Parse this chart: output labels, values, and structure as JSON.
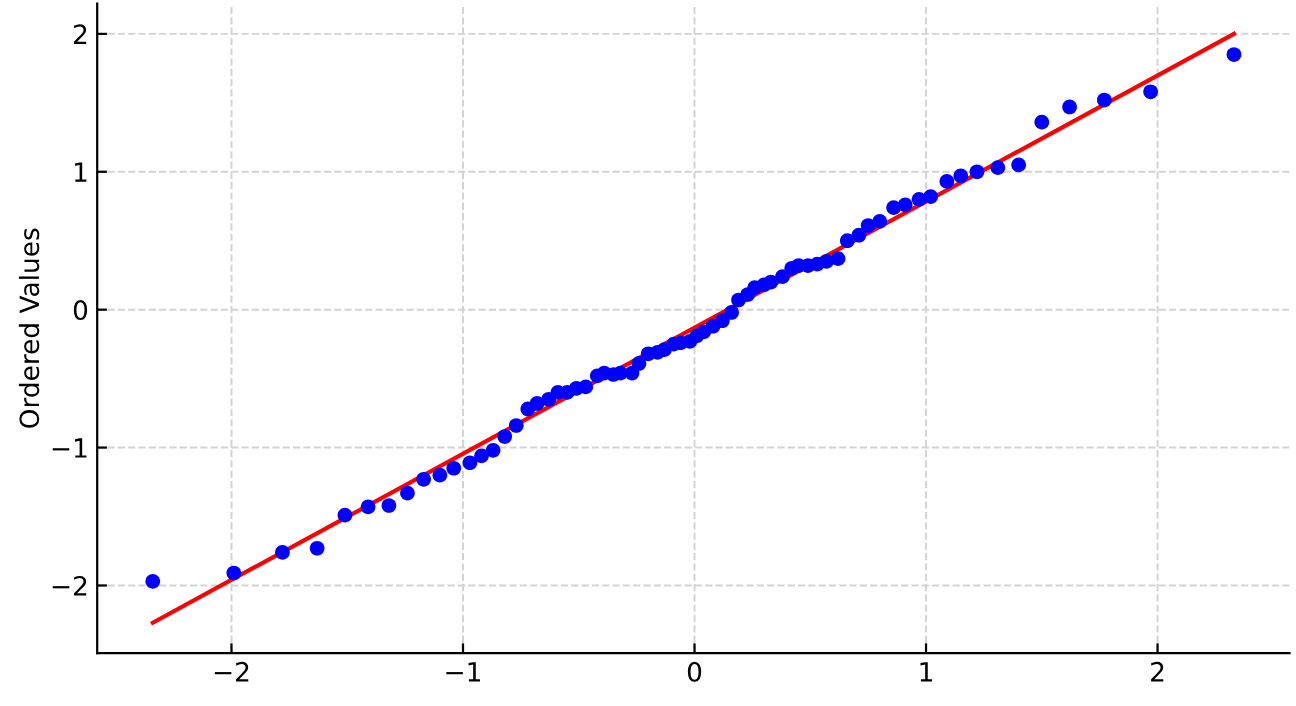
{
  "chart_data": {
    "type": "scatter",
    "ylabel": "Ordered Values",
    "xlim": [
      -2.58,
      2.57
    ],
    "ylim": [
      -2.49,
      2.22
    ],
    "xticks": [
      -2,
      -1,
      0,
      1,
      2
    ],
    "yticks": [
      -2,
      -1,
      0,
      1,
      2
    ],
    "grid": true,
    "marker": "circle",
    "series": [
      {
        "color": "#0000ff",
        "x": [
          -2.34,
          -1.99,
          -1.78,
          -1.63,
          -1.51,
          -1.41,
          -1.32,
          -1.24,
          -1.17,
          -1.1,
          -1.04,
          -0.97,
          -0.92,
          -0.87,
          -0.82,
          -0.77,
          -0.72,
          -0.68,
          -0.63,
          -0.59,
          -0.55,
          -0.51,
          -0.47,
          -0.42,
          -0.39,
          -0.35,
          -0.32,
          -0.27,
          -0.24,
          -0.2,
          -0.16,
          -0.13,
          -0.09,
          -0.06,
          -0.02,
          0.01,
          0.04,
          0.08,
          0.12,
          0.16,
          0.19,
          0.23,
          0.26,
          0.3,
          0.33,
          0.38,
          0.42,
          0.45,
          0.49,
          0.53,
          0.57,
          0.62,
          0.66,
          0.71,
          0.75,
          0.8,
          0.86,
          0.91,
          0.97,
          1.02,
          1.09,
          1.15,
          1.22,
          1.31,
          1.4,
          1.5,
          1.62,
          1.77,
          1.97,
          2.33
        ],
        "values": [
          -1.97,
          -1.91,
          -1.76,
          -1.73,
          -1.49,
          -1.43,
          -1.42,
          -1.33,
          -1.23,
          -1.2,
          -1.15,
          -1.11,
          -1.06,
          -1.02,
          -0.92,
          -0.84,
          -0.72,
          -0.68,
          -0.65,
          -0.6,
          -0.6,
          -0.57,
          -0.56,
          -0.48,
          -0.46,
          -0.47,
          -0.46,
          -0.46,
          -0.39,
          -0.32,
          -0.31,
          -0.29,
          -0.25,
          -0.24,
          -0.23,
          -0.19,
          -0.16,
          -0.12,
          -0.08,
          -0.02,
          0.07,
          0.11,
          0.16,
          0.18,
          0.2,
          0.24,
          0.3,
          0.32,
          0.32,
          0.33,
          0.35,
          0.37,
          0.5,
          0.54,
          0.61,
          0.64,
          0.74,
          0.76,
          0.8,
          0.82,
          0.93,
          0.97,
          1.0,
          1.03,
          1.05,
          1.36,
          1.47,
          1.52,
          1.58,
          1.85
        ]
      },
      {
        "type": "line",
        "color": "#ff0000",
        "marker": "none",
        "line_style": "solid",
        "x": [
          -2.34,
          2.33
        ],
        "values": [
          -2.27,
          2.0
        ]
      }
    ]
  }
}
